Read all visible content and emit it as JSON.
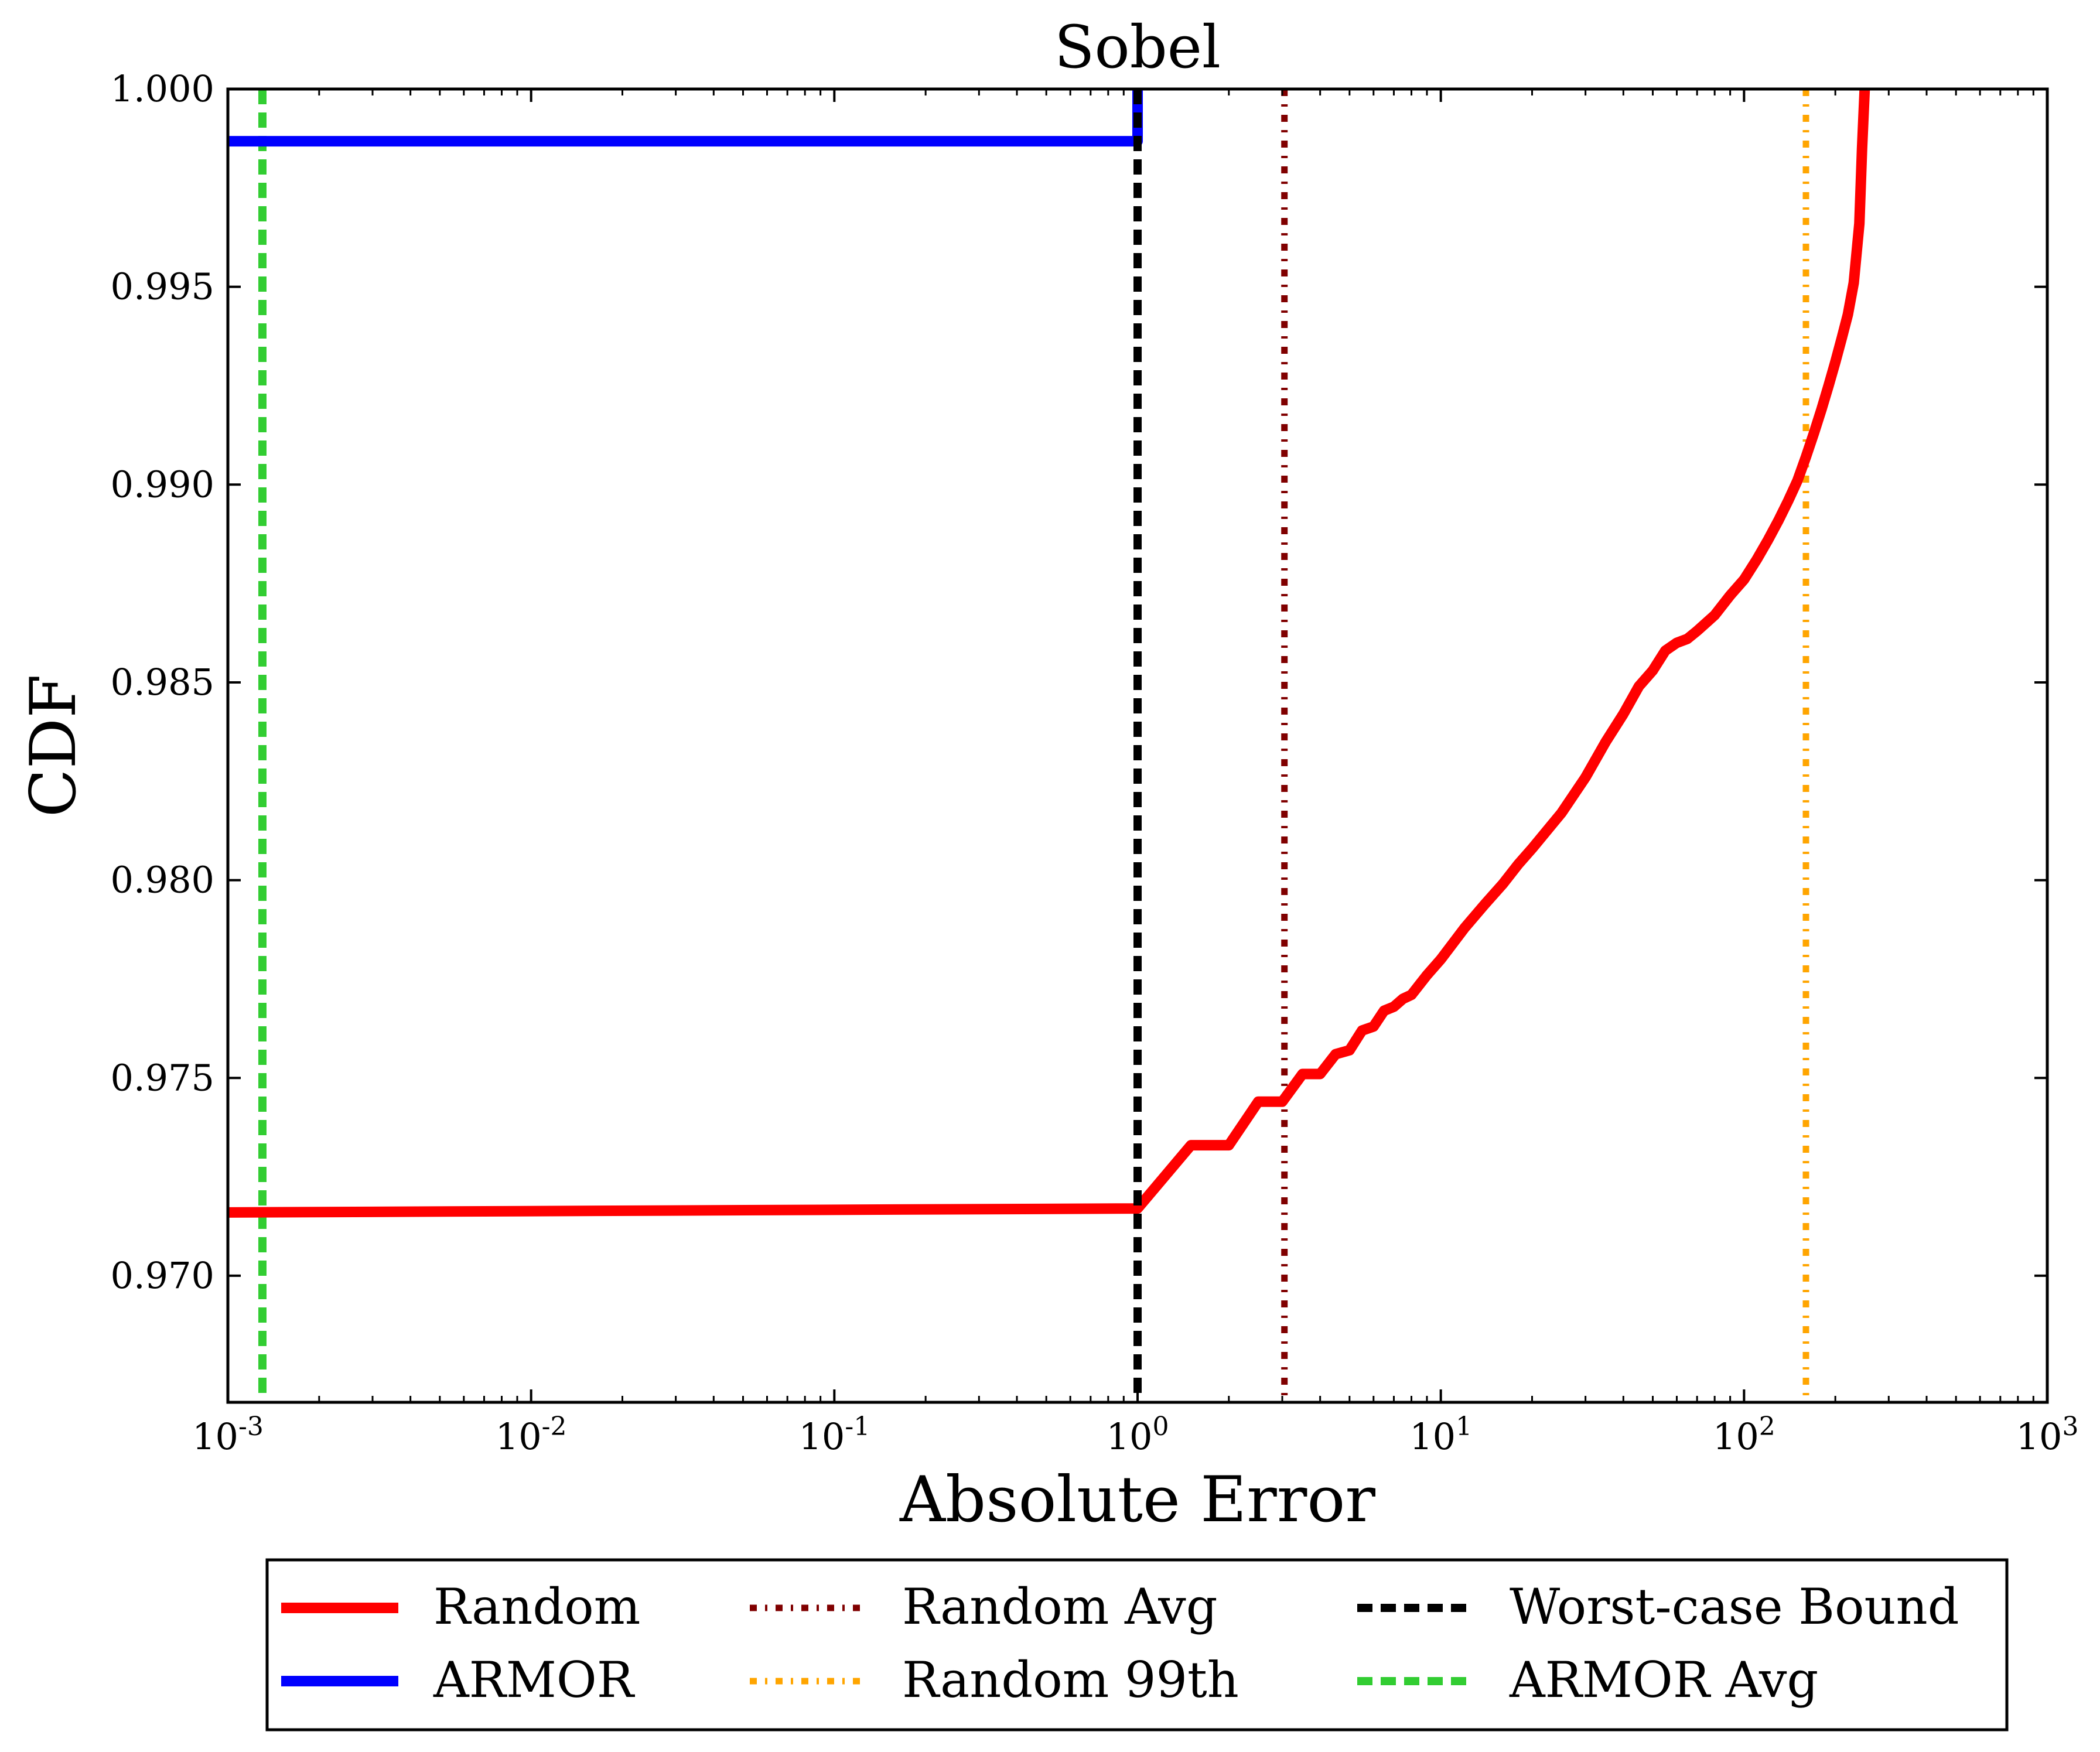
{
  "chart_data": {
    "type": "line",
    "title": "Sobel",
    "xlabel": "Absolute Error",
    "ylabel": "CDF",
    "xscale": "log",
    "xlim": [
      0.001,
      1000
    ],
    "ylim": [
      0.9668,
      1.0
    ],
    "x_ticks": [
      {
        "value": 0.001,
        "base": "10",
        "exp": "-3"
      },
      {
        "value": 0.01,
        "base": "10",
        "exp": "-2"
      },
      {
        "value": 0.1,
        "base": "10",
        "exp": "-1"
      },
      {
        "value": 1,
        "base": "10",
        "exp": "0"
      },
      {
        "value": 10,
        "base": "10",
        "exp": "1"
      },
      {
        "value": 100,
        "base": "10",
        "exp": "2"
      },
      {
        "value": 1000,
        "base": "10",
        "exp": "3"
      }
    ],
    "y_ticks": [
      {
        "value": 0.97,
        "label": "0.970"
      },
      {
        "value": 0.975,
        "label": "0.975"
      },
      {
        "value": 0.98,
        "label": "0.980"
      },
      {
        "value": 0.985,
        "label": "0.985"
      },
      {
        "value": 0.99,
        "label": "0.990"
      },
      {
        "value": 0.995,
        "label": "0.995"
      },
      {
        "value": 1.0,
        "label": "1.000"
      }
    ],
    "grid": false,
    "legend_position": "bottom-outside",
    "series": [
      {
        "name": "Random",
        "kind": "cdf",
        "color": "#ff0000",
        "style": "solid",
        "x": [
          0.001,
          1.0,
          1.5,
          2.0,
          2.5,
          3.0,
          3.5,
          4.0,
          4.5,
          5.0,
          5.5,
          6.0,
          6.5,
          7.0,
          7.5,
          8.0,
          9.0,
          10,
          12,
          14,
          16,
          18,
          20,
          25,
          30,
          35,
          40,
          45,
          50,
          55,
          60,
          65,
          70,
          80,
          90,
          100,
          110,
          120,
          130,
          140,
          150,
          160,
          170,
          180,
          190,
          200,
          210,
          220,
          230,
          240,
          245,
          250
        ],
        "y": [
          0.9716,
          0.9717,
          0.9733,
          0.9733,
          0.9744,
          0.9744,
          0.9751,
          0.9751,
          0.9756,
          0.9757,
          0.9762,
          0.9763,
          0.9767,
          0.9768,
          0.977,
          0.9771,
          0.9776,
          0.978,
          0.9788,
          0.9794,
          0.9799,
          0.9804,
          0.9808,
          0.9817,
          0.9826,
          0.9835,
          0.9842,
          0.9849,
          0.9853,
          0.9858,
          0.986,
          0.9861,
          0.9863,
          0.9867,
          0.9872,
          0.9876,
          0.9881,
          0.9886,
          0.9891,
          0.9896,
          0.9901,
          0.9907,
          0.9913,
          0.9919,
          0.9925,
          0.9931,
          0.9937,
          0.9943,
          0.9951,
          0.9966,
          0.9985,
          1.0
        ]
      },
      {
        "name": "ARMOR",
        "kind": "cdf",
        "color": "#0000ff",
        "style": "solid",
        "x": [
          0.001,
          1.0,
          1.0
        ],
        "y": [
          0.99868,
          0.99868,
          1.0
        ]
      },
      {
        "name": "Random Avg",
        "kind": "vline",
        "color": "#800000",
        "style": "dashdot",
        "x_value": 3.05
      },
      {
        "name": "Random 99th",
        "kind": "vline",
        "color": "#ffa500",
        "style": "dashdot",
        "x_value": 160
      },
      {
        "name": "Worst-case Bound",
        "kind": "vline",
        "color": "#000000",
        "style": "dashed",
        "x_value": 1.0
      },
      {
        "name": "ARMOR Avg",
        "kind": "vline",
        "color": "#32cd32",
        "style": "dashed",
        "x_value": 0.0013
      }
    ],
    "legend_order": [
      "Random",
      "ARMOR",
      "Random Avg",
      "Random 99th",
      "Worst-case Bound",
      "ARMOR Avg"
    ]
  }
}
